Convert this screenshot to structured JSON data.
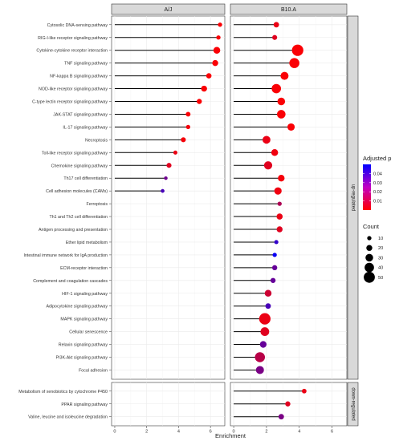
{
  "chart_data": {
    "type": "dot-lollipop",
    "xlabel": "Enrichment",
    "x_ticks": [
      0,
      2,
      4,
      6
    ],
    "xlim": [
      -0.2,
      6.9
    ],
    "facets": [
      "A/J",
      "B10.A"
    ],
    "row_groups": [
      {
        "name": "up-regulated",
        "pathways": [
          "Cytosolic DNA-sensing pathway",
          "RIG-I-like receptor signaling pathway",
          "Cytokine-cytokine receptor interaction",
          "TNF signaling pathway",
          "NF-kappa B signaling pathway",
          "NOD-like receptor signaling pathway",
          "C-type lectin receptor signaling pathway",
          "JAK-STAT signaling pathway",
          "IL-17 signaling pathway",
          "Necroptosis",
          "Toll-like receptor signaling pathway",
          "Chemokine signaling pathway",
          "Th17 cell differentiation",
          "Cell adhesion molecules (CAMs)",
          "Ferroptosis",
          "Th1 and Th2 cell differentiation",
          "Antigen processing and presentation",
          "Ether lipid metabolism",
          "Intestinal immune network for IgA production",
          "ECM-receptor interaction",
          "Complement and coagulation cascades",
          "HIF-1 signaling pathway",
          "Adipocytokine signaling pathway",
          "MAPK signaling pathway",
          "Cellular senescence",
          "Relaxin signaling pathway",
          "PI3K-Akt signaling pathway",
          "Focal adhesion"
        ]
      },
      {
        "name": "down-regulated",
        "pathways": [
          "Metabolism of xenobiotics by cytochrome P450",
          "PPAR signaling pathway",
          "Valine, leucine and isoleucine degradation"
        ]
      }
    ],
    "points": {
      "A/J": [
        {
          "pathway": "Cytosolic DNA-sensing pathway",
          "group": "up-regulated",
          "enrichment": 6.6,
          "count": 10,
          "padj": 0.001
        },
        {
          "pathway": "RIG-I-like receptor signaling pathway",
          "group": "up-regulated",
          "enrichment": 6.5,
          "count": 10,
          "padj": 0.001
        },
        {
          "pathway": "Cytokine-cytokine receptor interaction",
          "group": "up-regulated",
          "enrichment": 6.4,
          "count": 25,
          "padj": 0.001
        },
        {
          "pathway": "TNF signaling pathway",
          "group": "up-regulated",
          "enrichment": 6.3,
          "count": 20,
          "padj": 0.001
        },
        {
          "pathway": "NF-kappa B signaling pathway",
          "group": "up-regulated",
          "enrichment": 5.9,
          "count": 16,
          "padj": 0.001
        },
        {
          "pathway": "NOD-like receptor signaling pathway",
          "group": "up-regulated",
          "enrichment": 5.6,
          "count": 20,
          "padj": 0.001
        },
        {
          "pathway": "C-type lectin receptor signaling pathway",
          "group": "up-regulated",
          "enrichment": 5.3,
          "count": 15,
          "padj": 0.001
        },
        {
          "pathway": "JAK-STAT signaling pathway",
          "group": "up-regulated",
          "enrichment": 4.6,
          "count": 13,
          "padj": 0.001
        },
        {
          "pathway": "IL-17 signaling pathway",
          "group": "up-regulated",
          "enrichment": 4.6,
          "count": 10,
          "padj": 0.002
        },
        {
          "pathway": "Necroptosis",
          "group": "up-regulated",
          "enrichment": 4.3,
          "count": 14,
          "padj": 0.002
        },
        {
          "pathway": "Toll-like receptor signaling pathway",
          "group": "up-regulated",
          "enrichment": 3.8,
          "count": 9,
          "padj": 0.004
        },
        {
          "pathway": "Chemokine signaling pathway",
          "group": "up-regulated",
          "enrichment": 3.4,
          "count": 14,
          "padj": 0.006
        },
        {
          "pathway": "Th17 cell differentiation",
          "group": "up-regulated",
          "enrichment": 3.2,
          "count": 6,
          "padj": 0.028
        },
        {
          "pathway": "Cell adhesion molecules (CAMs)",
          "group": "up-regulated",
          "enrichment": 3.0,
          "count": 7,
          "padj": 0.036
        }
      ],
      "B10.A": [
        {
          "pathway": "Cytosolic DNA-sensing pathway",
          "group": "up-regulated",
          "enrichment": 2.6,
          "count": 17,
          "padj": 0.004
        },
        {
          "pathway": "RIG-I-like receptor signaling pathway",
          "group": "up-regulated",
          "enrichment": 2.5,
          "count": 14,
          "padj": 0.006
        },
        {
          "pathway": "Cytokine-cytokine receptor interaction",
          "group": "up-regulated",
          "enrichment": 3.9,
          "count": 52,
          "padj": 0.001
        },
        {
          "pathway": "TNF signaling pathway",
          "group": "up-regulated",
          "enrichment": 3.7,
          "count": 44,
          "padj": 0.001
        },
        {
          "pathway": "NF-kappa B signaling pathway",
          "group": "up-regulated",
          "enrichment": 3.1,
          "count": 32,
          "padj": 0.001
        },
        {
          "pathway": "NOD-like receptor signaling pathway",
          "group": "up-regulated",
          "enrichment": 2.6,
          "count": 40,
          "padj": 0.001
        },
        {
          "pathway": "C-type lectin receptor signaling pathway",
          "group": "up-regulated",
          "enrichment": 2.9,
          "count": 30,
          "padj": 0.001
        },
        {
          "pathway": "JAK-STAT signaling pathway",
          "group": "up-regulated",
          "enrichment": 2.9,
          "count": 35,
          "padj": 0.001
        },
        {
          "pathway": "IL-17 signaling pathway",
          "group": "up-regulated",
          "enrichment": 3.5,
          "count": 28,
          "padj": 0.001
        },
        {
          "pathway": "Necroptosis",
          "group": "up-regulated",
          "enrichment": 2.0,
          "count": 31,
          "padj": 0.004
        },
        {
          "pathway": "Toll-like receptor signaling pathway",
          "group": "up-regulated",
          "enrichment": 2.5,
          "count": 25,
          "padj": 0.003
        },
        {
          "pathway": "Chemokine signaling pathway",
          "group": "up-regulated",
          "enrichment": 2.1,
          "count": 33,
          "padj": 0.006
        },
        {
          "pathway": "Th17 cell differentiation",
          "group": "up-regulated",
          "enrichment": 2.9,
          "count": 24,
          "padj": 0.002
        },
        {
          "pathway": "Cell adhesion molecules (CAMs)",
          "group": "up-regulated",
          "enrichment": 2.7,
          "count": 28,
          "padj": 0.003
        },
        {
          "pathway": "Ferroptosis",
          "group": "up-regulated",
          "enrichment": 2.8,
          "count": 10,
          "padj": 0.016
        },
        {
          "pathway": "Th1 and Th2 cell differentiation",
          "group": "up-regulated",
          "enrichment": 2.8,
          "count": 21,
          "padj": 0.004
        },
        {
          "pathway": "Antigen processing and presentation",
          "group": "up-regulated",
          "enrichment": 2.8,
          "count": 20,
          "padj": 0.006
        },
        {
          "pathway": "Ether lipid metabolism",
          "group": "up-regulated",
          "enrichment": 2.6,
          "count": 9,
          "padj": 0.04
        },
        {
          "pathway": "Intestinal immune network for IgA production",
          "group": "up-regulated",
          "enrichment": 2.5,
          "count": 10,
          "padj": 0.048
        },
        {
          "pathway": "ECM-receptor interaction",
          "group": "up-regulated",
          "enrichment": 2.5,
          "count": 15,
          "padj": 0.03
        },
        {
          "pathway": "Complement and coagulation cascades",
          "group": "up-regulated",
          "enrichment": 2.4,
          "count": 15,
          "padj": 0.03
        },
        {
          "pathway": "HIF-1 signaling pathway",
          "group": "up-regulated",
          "enrichment": 2.1,
          "count": 25,
          "padj": 0.01
        },
        {
          "pathway": "Adipocytokine signaling pathway",
          "group": "up-regulated",
          "enrichment": 2.1,
          "count": 17,
          "padj": 0.036
        },
        {
          "pathway": "MAPK signaling pathway",
          "group": "up-regulated",
          "enrichment": 1.9,
          "count": 52,
          "padj": 0.004
        },
        {
          "pathway": "Cellular senescence",
          "group": "up-regulated",
          "enrichment": 1.9,
          "count": 36,
          "padj": 0.006
        },
        {
          "pathway": "Relaxin signaling pathway",
          "group": "up-regulated",
          "enrichment": 1.8,
          "count": 24,
          "padj": 0.03
        },
        {
          "pathway": "PI3K-Akt signaling pathway",
          "group": "up-regulated",
          "enrichment": 1.6,
          "count": 44,
          "padj": 0.014
        },
        {
          "pathway": "Focal adhesion",
          "group": "up-regulated",
          "enrichment": 1.6,
          "count": 32,
          "padj": 0.026
        },
        {
          "pathway": "Metabolism of xenobiotics by cytochrome P450",
          "group": "down-regulated",
          "enrichment": 4.3,
          "count": 12,
          "padj": 0.004
        },
        {
          "pathway": "PPAR signaling pathway",
          "group": "down-regulated",
          "enrichment": 3.3,
          "count": 15,
          "padj": 0.006
        },
        {
          "pathway": "Valine, leucine and isoleucine degradation",
          "group": "down-regulated",
          "enrichment": 2.9,
          "count": 17,
          "padj": 0.026
        }
      ]
    },
    "color_legend": {
      "title": "Adjusted p",
      "ticks": [
        0.04,
        0.03,
        0.02,
        0.01
      ],
      "range": [
        0,
        0.05
      ],
      "low_color": "#ff0000",
      "high_color": "#0000ff"
    },
    "size_legend": {
      "title": "Count",
      "values": [
        10,
        20,
        30,
        40,
        50
      ]
    },
    "grid": true
  }
}
